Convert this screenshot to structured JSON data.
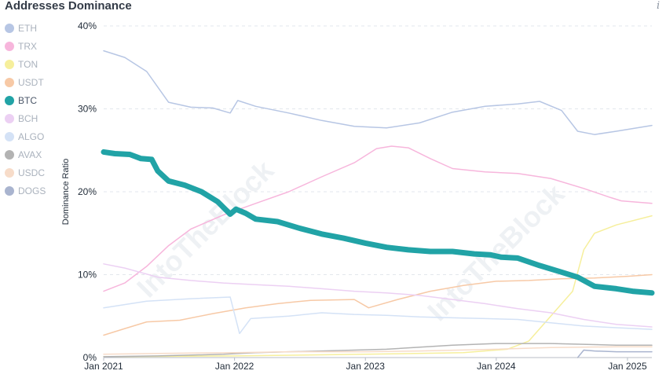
{
  "title": "Addresses Dominance",
  "info_icon": "info-icon",
  "watermark": "IntoTheBlock",
  "legend": [
    {
      "name": "ETH",
      "color": "#b7c6e4",
      "active": false
    },
    {
      "name": "TRX",
      "color": "#f7b6dc",
      "active": false
    },
    {
      "name": "TON",
      "color": "#f6ef9c",
      "active": false
    },
    {
      "name": "USDT",
      "color": "#f7c9a6",
      "active": false
    },
    {
      "name": "BTC",
      "color": "#21a3a6",
      "active": true
    },
    {
      "name": "BCH",
      "color": "#ecd0f3",
      "active": false
    },
    {
      "name": "ALGO",
      "color": "#d4e2f6",
      "active": false
    },
    {
      "name": "AVAX",
      "color": "#b3b3b3",
      "active": false
    },
    {
      "name": "USDC",
      "color": "#f7dcc9",
      "active": false
    },
    {
      "name": "DOGS",
      "color": "#a9b4cf",
      "active": false
    }
  ],
  "chart_data": {
    "type": "line",
    "ylabel": "Dominance Ratio",
    "xlabel": "",
    "y_ticks": [
      "0%",
      "10%",
      "20%",
      "30%",
      "40%"
    ],
    "x_ticks": [
      "Jan 2021",
      "Jan 2022",
      "Jan 2023",
      "Jan 2024",
      "Jan 2025"
    ],
    "ylim": [
      0,
      40
    ],
    "xlim": [
      "2021-01-01",
      "2025-03-10"
    ],
    "grid": "horizontal dashed",
    "series": [
      {
        "name": "ETH",
        "color": "#b7c6e4",
        "width": 1.5,
        "points": [
          [
            "2021-01-01",
            37.0
          ],
          [
            "2021-03-01",
            36.2
          ],
          [
            "2021-05-01",
            34.5
          ],
          [
            "2021-07-01",
            30.8
          ],
          [
            "2021-09-01",
            30.2
          ],
          [
            "2021-11-01",
            30.1
          ],
          [
            "2021-12-20",
            29.5
          ],
          [
            "2022-01-10",
            31.0
          ],
          [
            "2022-03-01",
            30.3
          ],
          [
            "2022-06-01",
            29.5
          ],
          [
            "2022-09-01",
            28.6
          ],
          [
            "2022-12-01",
            27.9
          ],
          [
            "2023-03-01",
            27.7
          ],
          [
            "2023-06-01",
            28.3
          ],
          [
            "2023-09-01",
            29.6
          ],
          [
            "2023-12-01",
            30.3
          ],
          [
            "2024-03-01",
            30.6
          ],
          [
            "2024-05-01",
            30.9
          ],
          [
            "2024-07-01",
            29.8
          ],
          [
            "2024-08-15",
            27.3
          ],
          [
            "2024-10-01",
            26.9
          ],
          [
            "2024-12-01",
            27.3
          ],
          [
            "2025-03-10",
            28.0
          ]
        ]
      },
      {
        "name": "TRX",
        "color": "#f7b6dc",
        "width": 1.5,
        "points": [
          [
            "2021-01-01",
            8.0
          ],
          [
            "2021-03-01",
            9.0
          ],
          [
            "2021-05-01",
            11.0
          ],
          [
            "2021-07-01",
            13.5
          ],
          [
            "2021-09-01",
            15.5
          ],
          [
            "2021-12-01",
            17.2
          ],
          [
            "2022-03-01",
            18.6
          ],
          [
            "2022-06-01",
            20.0
          ],
          [
            "2022-09-01",
            21.8
          ],
          [
            "2022-12-01",
            23.5
          ],
          [
            "2023-02-01",
            25.2
          ],
          [
            "2023-03-15",
            25.5
          ],
          [
            "2023-05-01",
            25.3
          ],
          [
            "2023-07-01",
            24.0
          ],
          [
            "2023-09-01",
            22.8
          ],
          [
            "2023-12-01",
            22.4
          ],
          [
            "2024-03-01",
            22.2
          ],
          [
            "2024-06-01",
            21.6
          ],
          [
            "2024-09-01",
            20.4
          ],
          [
            "2024-11-15",
            19.3
          ],
          [
            "2024-12-15",
            18.9
          ],
          [
            "2025-03-10",
            18.6
          ]
        ]
      },
      {
        "name": "TON",
        "color": "#f6ef9c",
        "width": 1.5,
        "points": [
          [
            "2021-01-01",
            0.1
          ],
          [
            "2022-01-01",
            0.2
          ],
          [
            "2023-01-01",
            0.4
          ],
          [
            "2023-10-01",
            0.6
          ],
          [
            "2024-02-01",
            1.0
          ],
          [
            "2024-04-01",
            2.0
          ],
          [
            "2024-06-01",
            5.0
          ],
          [
            "2024-08-01",
            8.0
          ],
          [
            "2024-09-01",
            13.0
          ],
          [
            "2024-10-01",
            15.0
          ],
          [
            "2024-12-01",
            16.0
          ],
          [
            "2025-03-10",
            17.1
          ]
        ]
      },
      {
        "name": "USDT",
        "color": "#f7c9a6",
        "width": 1.5,
        "points": [
          [
            "2021-01-01",
            2.7
          ],
          [
            "2021-03-01",
            3.5
          ],
          [
            "2021-05-01",
            4.3
          ],
          [
            "2021-08-01",
            4.5
          ],
          [
            "2021-11-01",
            5.3
          ],
          [
            "2022-02-01",
            6.0
          ],
          [
            "2022-05-01",
            6.5
          ],
          [
            "2022-08-01",
            6.9
          ],
          [
            "2022-12-01",
            7.0
          ],
          [
            "2023-01-10",
            6.0
          ],
          [
            "2023-04-01",
            7.0
          ],
          [
            "2023-07-01",
            8.0
          ],
          [
            "2023-10-01",
            8.7
          ],
          [
            "2024-01-01",
            9.2
          ],
          [
            "2024-04-01",
            9.3
          ],
          [
            "2024-07-01",
            9.5
          ],
          [
            "2024-10-01",
            9.6
          ],
          [
            "2025-01-01",
            9.8
          ],
          [
            "2025-03-10",
            10.0
          ]
        ]
      },
      {
        "name": "BCH",
        "color": "#ecd0f3",
        "width": 1.5,
        "points": [
          [
            "2021-01-01",
            11.3
          ],
          [
            "2021-03-01",
            10.8
          ],
          [
            "2021-06-01",
            9.7
          ],
          [
            "2021-09-01",
            9.3
          ],
          [
            "2021-12-01",
            9.0
          ],
          [
            "2022-03-01",
            8.8
          ],
          [
            "2022-06-01",
            8.6
          ],
          [
            "2022-09-01",
            8.3
          ],
          [
            "2022-12-01",
            8.0
          ],
          [
            "2023-03-01",
            7.8
          ],
          [
            "2023-06-01",
            7.5
          ],
          [
            "2023-09-01",
            7.0
          ],
          [
            "2023-12-01",
            6.5
          ],
          [
            "2024-03-01",
            5.9
          ],
          [
            "2024-06-01",
            5.4
          ],
          [
            "2024-09-01",
            4.6
          ],
          [
            "2024-12-01",
            4.0
          ],
          [
            "2025-03-10",
            3.7
          ]
        ]
      },
      {
        "name": "ALGO",
        "color": "#d4e2f6",
        "width": 1.5,
        "points": [
          [
            "2021-01-01",
            6.0
          ],
          [
            "2021-05-01",
            6.8
          ],
          [
            "2021-09-01",
            7.1
          ],
          [
            "2021-12-20",
            7.3
          ],
          [
            "2022-01-15",
            2.9
          ],
          [
            "2022-02-15",
            4.7
          ],
          [
            "2022-06-01",
            5.0
          ],
          [
            "2022-09-01",
            5.4
          ],
          [
            "2022-12-01",
            5.2
          ],
          [
            "2023-03-01",
            5.1
          ],
          [
            "2023-06-01",
            4.9
          ],
          [
            "2023-09-01",
            4.8
          ],
          [
            "2023-12-01",
            4.7
          ],
          [
            "2024-03-01",
            4.6
          ],
          [
            "2024-06-01",
            4.2
          ],
          [
            "2024-09-01",
            3.8
          ],
          [
            "2024-12-01",
            3.6
          ],
          [
            "2025-03-10",
            3.4
          ]
        ]
      },
      {
        "name": "AVAX",
        "color": "#b3b3b3",
        "width": 1.5,
        "points": [
          [
            "2021-01-01",
            0.1
          ],
          [
            "2021-06-01",
            0.2
          ],
          [
            "2021-12-01",
            0.4
          ],
          [
            "2022-03-01",
            0.6
          ],
          [
            "2022-09-01",
            0.8
          ],
          [
            "2023-03-01",
            1.0
          ],
          [
            "2023-09-01",
            1.5
          ],
          [
            "2024-01-01",
            1.7
          ],
          [
            "2024-06-01",
            1.7
          ],
          [
            "2024-12-01",
            1.5
          ],
          [
            "2025-03-10",
            1.5
          ]
        ]
      },
      {
        "name": "USDC",
        "color": "#f7dcc9",
        "width": 1.5,
        "points": [
          [
            "2021-01-01",
            0.4
          ],
          [
            "2021-06-01",
            0.5
          ],
          [
            "2022-01-01",
            0.6
          ],
          [
            "2022-06-01",
            0.7
          ],
          [
            "2023-01-01",
            0.7
          ],
          [
            "2023-06-01",
            0.8
          ],
          [
            "2024-01-01",
            1.0
          ],
          [
            "2024-06-01",
            1.2
          ],
          [
            "2024-12-01",
            1.3
          ],
          [
            "2025-03-10",
            1.3
          ]
        ]
      },
      {
        "name": "DOGS",
        "color": "#a9b4cf",
        "width": 1.5,
        "points": [
          [
            "2024-08-15",
            0.0
          ],
          [
            "2024-09-01",
            0.9
          ],
          [
            "2024-10-01",
            0.8
          ],
          [
            "2024-12-01",
            0.7
          ],
          [
            "2025-03-10",
            0.7
          ]
        ]
      },
      {
        "name": "BTC",
        "color": "#21a3a6",
        "width": 7,
        "points": [
          [
            "2021-01-01",
            24.8
          ],
          [
            "2021-02-01",
            24.6
          ],
          [
            "2021-03-15",
            24.5
          ],
          [
            "2021-04-15",
            24.0
          ],
          [
            "2021-05-15",
            23.9
          ],
          [
            "2021-06-01",
            22.5
          ],
          [
            "2021-07-01",
            21.3
          ],
          [
            "2021-08-15",
            20.8
          ],
          [
            "2021-10-01",
            20.0
          ],
          [
            "2021-11-15",
            18.8
          ],
          [
            "2021-12-20",
            17.3
          ],
          [
            "2022-01-05",
            17.9
          ],
          [
            "2022-02-01",
            17.4
          ],
          [
            "2022-03-01",
            16.7
          ],
          [
            "2022-05-01",
            16.4
          ],
          [
            "2022-07-01",
            15.6
          ],
          [
            "2022-09-01",
            14.9
          ],
          [
            "2022-11-01",
            14.4
          ],
          [
            "2023-01-01",
            13.8
          ],
          [
            "2023-03-01",
            13.3
          ],
          [
            "2023-05-01",
            13.0
          ],
          [
            "2023-07-01",
            12.8
          ],
          [
            "2023-09-01",
            12.8
          ],
          [
            "2023-11-01",
            12.5
          ],
          [
            "2023-12-15",
            12.4
          ],
          [
            "2024-01-15",
            12.1
          ],
          [
            "2024-03-01",
            12.0
          ],
          [
            "2024-05-01",
            11.1
          ],
          [
            "2024-07-01",
            10.3
          ],
          [
            "2024-08-15",
            9.7
          ],
          [
            "2024-10-01",
            8.6
          ],
          [
            "2024-12-01",
            8.3
          ],
          [
            "2025-01-15",
            8.0
          ],
          [
            "2025-03-10",
            7.8
          ]
        ]
      }
    ]
  }
}
